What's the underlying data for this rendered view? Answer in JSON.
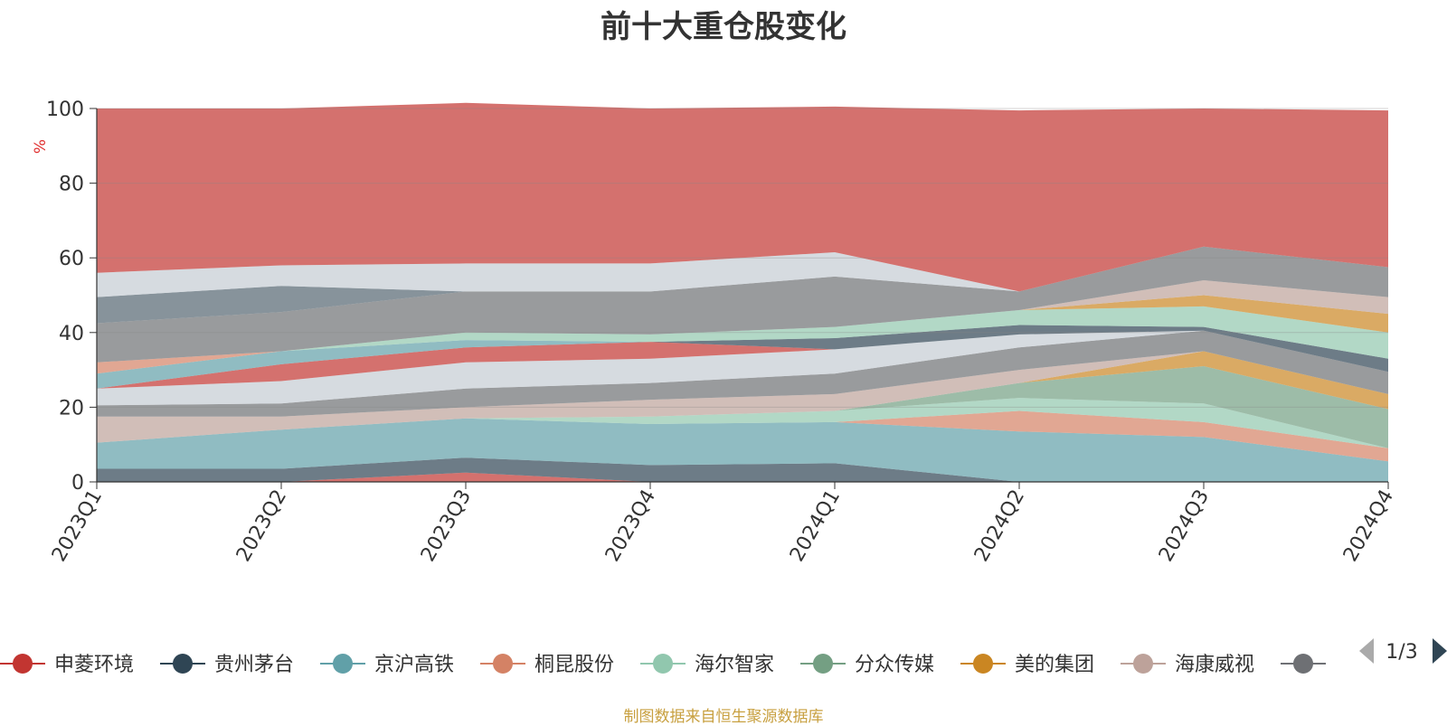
{
  "chart_data": {
    "type": "area",
    "title": "前十大重仓股变化",
    "ylabel": "%",
    "xlabel": "",
    "ylim": [
      0,
      100
    ],
    "yticks": [
      0,
      20,
      40,
      60,
      80,
      100
    ],
    "categories": [
      "2023Q1",
      "2023Q2",
      "2023Q3",
      "2023Q4",
      "2024Q1",
      "2024Q2",
      "2024Q3",
      "2024Q4"
    ],
    "grid": true,
    "stacked": true,
    "legend_position": "bottom",
    "legend_page": "1/3",
    "series": [
      {
        "name": "申菱环境",
        "color": "#c23531",
        "values": [
          0,
          0,
          2.5,
          0,
          0,
          0,
          0,
          0
        ]
      },
      {
        "name": "贵州茅台",
        "color": "#2f4554",
        "values": [
          3.5,
          3.5,
          4.0,
          4.5,
          5.0,
          0,
          0,
          0
        ]
      },
      {
        "name": "京沪高铁",
        "color": "#61a0a8",
        "values": [
          7.0,
          10.5,
          10.5,
          11.0,
          11.0,
          13.5,
          12.0,
          5.5
        ]
      },
      {
        "name": "桐昆股份",
        "color": "#d48265",
        "values": [
          0,
          0,
          0,
          0,
          0,
          5.5,
          4.0,
          3.5
        ]
      },
      {
        "name": "海尔智家",
        "color": "#91c7ae",
        "values": [
          0,
          0,
          0,
          2.0,
          3.0,
          3.5,
          5.0,
          0
        ]
      },
      {
        "name": "分众传媒",
        "color": "#749f83",
        "values": [
          0,
          0,
          0,
          0,
          0,
          4.0,
          10.0,
          10.5
        ]
      },
      {
        "name": "美的集团",
        "color": "#ca8622",
        "values": [
          0,
          0,
          0,
          0,
          0,
          0,
          4.0,
          4.0
        ]
      },
      {
        "name": "海康威视",
        "color": "#bda29a",
        "values": [
          7.0,
          3.5,
          3.0,
          4.5,
          4.5,
          3.5,
          0,
          0
        ]
      },
      {
        "name": "",
        "color": "#6e7074",
        "values": [
          3.0,
          3.5,
          5.0,
          4.5,
          5.5,
          6.0,
          5.5,
          6.0
        ]
      },
      {
        "name": "",
        "color": "#c4ccd3",
        "values": [
          4.5,
          6.0,
          7.0,
          6.5,
          6.5,
          3.5,
          0,
          0
        ]
      },
      {
        "name": "",
        "color": "#c23531",
        "values": [
          0,
          4.5,
          4.0,
          4.5,
          0,
          0,
          0,
          0
        ]
      },
      {
        "name": "",
        "color": "#61a0a8",
        "values": [
          4.0,
          3.5,
          2.0,
          0,
          0,
          0,
          0,
          0
        ]
      },
      {
        "name": "",
        "color": "#d48265",
        "values": [
          3.0,
          0,
          0,
          0,
          0,
          0,
          0,
          0
        ]
      },
      {
        "name": "",
        "color": "#2f4554",
        "values": [
          0,
          0,
          0,
          0,
          3.0,
          2.5,
          1.0,
          3.5
        ]
      },
      {
        "name": "",
        "color": "#91c7ae",
        "values": [
          0,
          0,
          2.0,
          2.0,
          3.0,
          4.0,
          5.5,
          7.0
        ]
      },
      {
        "name": "",
        "color": "#ca8622",
        "values": [
          0,
          0,
          0,
          0,
          0,
          0,
          3.0,
          5.0
        ]
      },
      {
        "name": "",
        "color": "#bda29a",
        "values": [
          0,
          0,
          0,
          0,
          0,
          0,
          4.0,
          4.5
        ]
      },
      {
        "name": "",
        "color": "#6e7074",
        "values": [
          10.5,
          10.5,
          11.0,
          11.5,
          13.5,
          5.0,
          9.0,
          8.0
        ]
      },
      {
        "name": "",
        "color": "#546570",
        "values": [
          7.0,
          7.0,
          0,
          0,
          0,
          0,
          0,
          0
        ]
      },
      {
        "name": "",
        "color": "#c4ccd3",
        "values": [
          6.5,
          5.5,
          7.5,
          7.5,
          6.5,
          0,
          0,
          0
        ]
      },
      {
        "name": "",
        "color": "#c23531",
        "values": [
          44.0,
          42.0,
          43.0,
          41.5,
          39.0,
          48.5,
          37.0,
          42.0
        ]
      }
    ]
  },
  "source_note": "制图数据来自恒生聚源数据库"
}
